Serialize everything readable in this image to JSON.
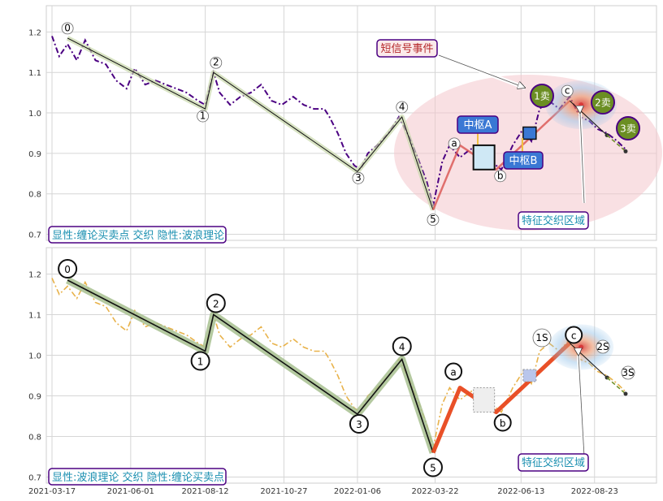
{
  "chart_data": [
    {
      "type": "line",
      "panel": "top",
      "ylim": [
        0.685,
        1.265
      ],
      "yticks": [
        0.7,
        0.8,
        0.9,
        1.0,
        1.1,
        1.2
      ],
      "ytick_labels": [
        "0.7",
        "0.8",
        "0.9",
        "1.0",
        "1.1",
        "1.2"
      ],
      "grid": true,
      "colors": {
        "price": "#4b0082",
        "wave": "#c8d7aa",
        "zone": "#f4c7cc"
      },
      "series": [
        {
          "style": "dash-dot",
          "points": [
            [
              "2021-03-17",
              1.19
            ],
            [
              "2021-03-24",
              1.14
            ],
            [
              "2021-04-01",
              1.17
            ],
            [
              "2021-04-10",
              1.13
            ],
            [
              "2021-04-18",
              1.18
            ],
            [
              "2021-04-28",
              1.13
            ],
            [
              "2021-05-08",
              1.12
            ],
            [
              "2021-05-18",
              1.08
            ],
            [
              "2021-05-28",
              1.06
            ],
            [
              "2021-06-05",
              1.11
            ],
            [
              "2021-06-15",
              1.07
            ],
            [
              "2021-06-25",
              1.08
            ],
            [
              "2021-07-05",
              1.07
            ],
            [
              "2021-07-15",
              1.06
            ],
            [
              "2021-07-25",
              1.05
            ],
            [
              "2021-08-05",
              1.03
            ],
            [
              "2021-08-12",
              1.02
            ],
            [
              "2021-08-16",
              1.06
            ],
            [
              "2021-08-20",
              1.1
            ],
            [
              "2021-08-26",
              1.05
            ],
            [
              "2021-09-05",
              1.02
            ],
            [
              "2021-09-15",
              1.04
            ],
            [
              "2021-09-25",
              1.05
            ],
            [
              "2021-10-05",
              1.07
            ],
            [
              "2021-10-15",
              1.03
            ],
            [
              "2021-10-25",
              1.02
            ],
            [
              "2021-11-05",
              1.04
            ],
            [
              "2021-11-15",
              1.02
            ],
            [
              "2021-11-25",
              1.01
            ],
            [
              "2021-12-05",
              1.01
            ],
            [
              "2021-12-10",
              0.99
            ],
            [
              "2021-12-18",
              0.95
            ],
            [
              "2021-12-26",
              0.9
            ],
            [
              "2022-01-03",
              0.87
            ],
            [
              "2022-01-09",
              0.86
            ],
            [
              "2022-01-16",
              0.9
            ],
            [
              "2022-01-25",
              0.92
            ],
            [
              "2022-02-05",
              0.95
            ],
            [
              "2022-02-15",
              0.99
            ],
            [
              "2022-02-25",
              0.94
            ],
            [
              "2022-03-05",
              0.89
            ],
            [
              "2022-03-14",
              0.83
            ],
            [
              "2022-03-20",
              0.77
            ],
            [
              "2022-03-29",
              0.88
            ],
            [
              "2022-04-05",
              0.92
            ],
            [
              "2022-04-15",
              0.89
            ],
            [
              "2022-04-25",
              0.91
            ],
            [
              "2022-05-05",
              0.92
            ],
            [
              "2022-05-15",
              0.88
            ],
            [
              "2022-05-25",
              0.86
            ],
            [
              "2022-06-05",
              0.92
            ],
            [
              "2022-06-15",
              0.96
            ],
            [
              "2022-06-23",
              0.93
            ],
            [
              "2022-07-01",
              1.01
            ],
            [
              "2022-07-10",
              1.03
            ],
            [
              "2022-07-20",
              1.01
            ],
            [
              "2022-07-30",
              1.04
            ],
            [
              "2022-08-09",
              0.99
            ],
            [
              "2022-08-18",
              0.98
            ],
            [
              "2022-08-26",
              0.96
            ],
            [
              "2022-09-04",
              0.95
            ],
            [
              "2022-09-14",
              0.93
            ],
            [
              "2022-09-22",
              0.91
            ]
          ]
        }
      ],
      "wave_points": [
        {
          "label": "0",
          "x": "2021-04-01",
          "y": 1.185
        },
        {
          "label": "1",
          "x": "2021-08-12",
          "y": 1.01
        },
        {
          "label": "2",
          "x": "2021-08-20",
          "y": 1.1
        },
        {
          "label": "3",
          "x": "2022-01-06",
          "y": 0.855
        },
        {
          "label": "4",
          "x": "2022-02-18",
          "y": 0.99
        },
        {
          "label": "5",
          "x": "2022-03-20",
          "y": 0.76
        }
      ],
      "chan_points": [
        {
          "label": "a",
          "x": "2022-04-15",
          "y": 0.92
        },
        {
          "label": "b",
          "x": "2022-05-20",
          "y": 0.86
        },
        {
          "label": "c",
          "x": "2022-07-30",
          "y": 1.03
        }
      ],
      "sell_points": [
        {
          "label": "1卖",
          "x": "2022-07-05",
          "y": 1.035
        },
        {
          "label": "2卖",
          "x": "2022-08-30",
          "y": 1.02
        },
        {
          "label": "3卖",
          "x": "2022-09-20",
          "y": 0.955
        }
      ],
      "annotations": {
        "short_signal": "短信号事件",
        "zhongshu_a": "中枢A",
        "zhongshu_b": "中枢B",
        "zone": "特征交织区域",
        "footer": "显性:缠论买卖点 交织 隐性:波浪理论"
      }
    },
    {
      "type": "line",
      "panel": "bottom",
      "ylim": [
        0.685,
        1.265
      ],
      "yticks": [
        0.7,
        0.8,
        0.9,
        1.0,
        1.1,
        1.2
      ],
      "ytick_labels": [
        "0.7",
        "0.8",
        "0.9",
        "1.0",
        "1.1",
        "1.2"
      ],
      "xticks": [
        "2021-03-17",
        "2021-06-01",
        "2021-08-12",
        "2021-10-27",
        "2022-01-06",
        "2022-03-22",
        "2022-06-13",
        "2022-08-23"
      ],
      "grid": true,
      "colors": {
        "price": "#e8b24a",
        "wave": "#a7bf8f",
        "chan": "#e8471c"
      },
      "series": [
        {
          "style": "dash-dot",
          "points": [
            [
              "2021-03-17",
              1.19
            ],
            [
              "2021-03-24",
              1.15
            ],
            [
              "2021-04-01",
              1.17
            ],
            [
              "2021-04-10",
              1.14
            ],
            [
              "2021-04-18",
              1.18
            ],
            [
              "2021-04-28",
              1.13
            ],
            [
              "2021-05-08",
              1.12
            ],
            [
              "2021-05-18",
              1.08
            ],
            [
              "2021-05-28",
              1.06
            ],
            [
              "2021-06-05",
              1.11
            ],
            [
              "2021-06-15",
              1.07
            ],
            [
              "2021-06-25",
              1.08
            ],
            [
              "2021-07-05",
              1.07
            ],
            [
              "2021-07-15",
              1.06
            ],
            [
              "2021-07-25",
              1.05
            ],
            [
              "2021-08-05",
              1.03
            ],
            [
              "2021-08-12",
              1.02
            ],
            [
              "2021-08-16",
              1.06
            ],
            [
              "2021-08-20",
              1.1
            ],
            [
              "2021-08-26",
              1.05
            ],
            [
              "2021-09-05",
              1.02
            ],
            [
              "2021-09-15",
              1.04
            ],
            [
              "2021-09-25",
              1.05
            ],
            [
              "2021-10-05",
              1.07
            ],
            [
              "2021-10-15",
              1.03
            ],
            [
              "2021-10-25",
              1.02
            ],
            [
              "2021-11-05",
              1.04
            ],
            [
              "2021-11-15",
              1.02
            ],
            [
              "2021-11-25",
              1.01
            ],
            [
              "2021-12-05",
              1.01
            ],
            [
              "2021-12-10",
              0.99
            ],
            [
              "2021-12-18",
              0.95
            ],
            [
              "2021-12-26",
              0.9
            ],
            [
              "2022-01-03",
              0.87
            ],
            [
              "2022-01-09",
              0.86
            ],
            [
              "2022-01-16",
              0.9
            ],
            [
              "2022-01-25",
              0.92
            ],
            [
              "2022-02-05",
              0.95
            ],
            [
              "2022-02-15",
              0.99
            ],
            [
              "2022-02-25",
              0.94
            ],
            [
              "2022-03-05",
              0.89
            ],
            [
              "2022-03-14",
              0.83
            ],
            [
              "2022-03-20",
              0.77
            ],
            [
              "2022-03-29",
              0.88
            ],
            [
              "2022-04-05",
              0.92
            ],
            [
              "2022-04-15",
              0.89
            ],
            [
              "2022-04-25",
              0.91
            ],
            [
              "2022-05-05",
              0.92
            ],
            [
              "2022-05-15",
              0.88
            ],
            [
              "2022-05-25",
              0.86
            ],
            [
              "2022-06-05",
              0.92
            ],
            [
              "2022-06-15",
              0.96
            ],
            [
              "2022-06-23",
              0.93
            ],
            [
              "2022-07-01",
              1.01
            ],
            [
              "2022-07-10",
              1.03
            ],
            [
              "2022-07-20",
              1.01
            ],
            [
              "2022-07-30",
              1.04
            ],
            [
              "2022-08-09",
              0.99
            ],
            [
              "2022-08-18",
              0.98
            ],
            [
              "2022-08-26",
              0.96
            ],
            [
              "2022-09-04",
              0.95
            ],
            [
              "2022-09-14",
              0.93
            ],
            [
              "2022-09-22",
              0.91
            ]
          ]
        }
      ],
      "wave_points": [
        {
          "label": "0",
          "x": "2021-04-01",
          "y": 1.185
        },
        {
          "label": "1",
          "x": "2021-08-12",
          "y": 1.01
        },
        {
          "label": "2",
          "x": "2021-08-20",
          "y": 1.1
        },
        {
          "label": "3",
          "x": "2022-01-06",
          "y": 0.855
        },
        {
          "label": "4",
          "x": "2022-02-18",
          "y": 0.99
        },
        {
          "label": "5",
          "x": "2022-03-20",
          "y": 0.76
        }
      ],
      "chan_points": [
        {
          "label": "a",
          "x": "2022-04-15",
          "y": 0.92
        },
        {
          "label": "b",
          "x": "2022-05-20",
          "y": 0.86
        },
        {
          "label": "c",
          "x": "2022-07-30",
          "y": 1.03
        }
      ],
      "sell_points": [
        {
          "label": "1S",
          "x": "2022-07-05",
          "y": 1.035
        },
        {
          "label": "2S",
          "x": "2022-08-30",
          "y": 1.02
        },
        {
          "label": "3S",
          "x": "2022-09-20",
          "y": 0.955
        }
      ],
      "annotations": {
        "zone": "特征交织区域",
        "footer": "显性:波浪理论 交织 隐性:缠论买卖点"
      }
    }
  ]
}
